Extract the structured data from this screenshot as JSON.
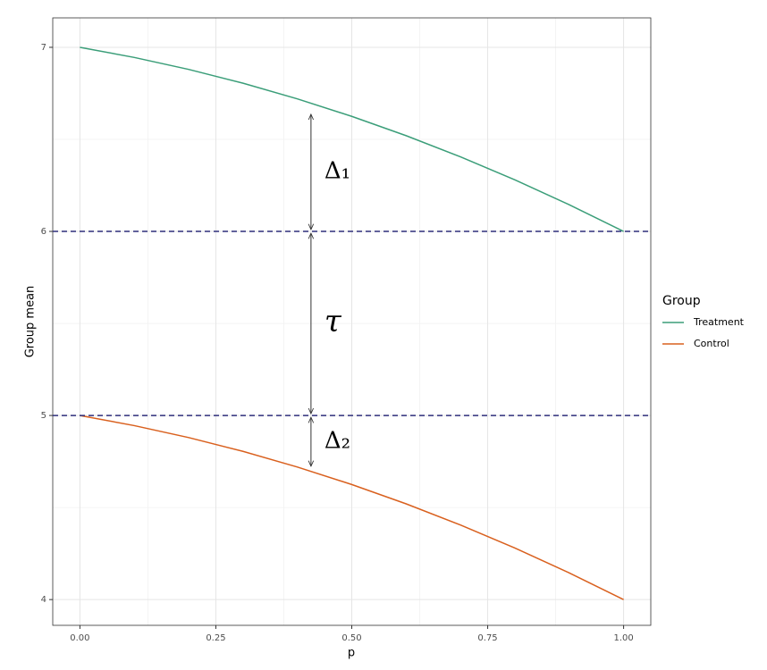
{
  "chart_data": {
    "type": "line",
    "x_label": "p",
    "y_label": "Group mean",
    "x": [
      0,
      0.1,
      0.2,
      0.3,
      0.4,
      0.5,
      0.6,
      0.7,
      0.8,
      0.9,
      1.0
    ],
    "series": [
      {
        "name": "Treatment",
        "color": "#3b9e79",
        "values": [
          7,
          6.945,
          6.88,
          6.805,
          6.72,
          6.625,
          6.52,
          6.405,
          6.28,
          6.145,
          6
        ]
      },
      {
        "name": "Control",
        "color": "#d9601e",
        "values": [
          5,
          4.945,
          4.88,
          4.805,
          4.72,
          4.625,
          4.52,
          4.405,
          4.28,
          4.145,
          4
        ]
      }
    ],
    "xlim": [
      -0.05,
      1.05
    ],
    "ylim": [
      3.86,
      7.16
    ],
    "xticks": [
      {
        "value": 0,
        "label": "0.00"
      },
      {
        "value": 0.25,
        "label": "0.25"
      },
      {
        "value": 0.5,
        "label": "0.50"
      },
      {
        "value": 0.75,
        "label": "0.75"
      },
      {
        "value": 1,
        "label": "1.00"
      }
    ],
    "yticks": [
      4,
      5,
      6,
      7
    ],
    "x_minor_ticks": [
      0.125,
      0.375,
      0.625,
      0.875
    ],
    "y_minor_ticks": [
      4.5,
      5.5,
      6.5
    ],
    "grid": true,
    "hlines": [
      6,
      5
    ],
    "hline_color": "#2e2e7a",
    "arrows": [
      {
        "label": "Δ₁",
        "x": 0.425,
        "y_start": 6.646,
        "y_end": 6
      },
      {
        "label": "τ",
        "x": 0.425,
        "y_start": 6,
        "y_end": 5
      },
      {
        "label": "Δ₂",
        "x": 0.425,
        "y_start": 5,
        "y_end": 4.714
      }
    ],
    "legend_title": "Group",
    "legend_position": "right"
  }
}
